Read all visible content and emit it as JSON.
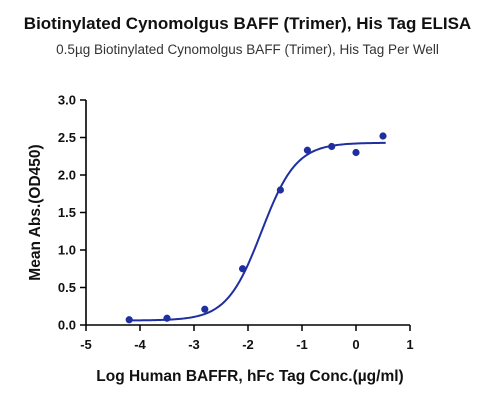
{
  "chart_data": {
    "type": "scatter",
    "title": "Biotinylated Cynomolgus BAFF (Trimer), His Tag  ELISA",
    "subtitle": "0.5µg Biotinylated Cynomolgus BAFF (Trimer), His Tag Per Well",
    "xlabel": "Log  Human BAFFR, hFc Tag Conc.(µg/ml)",
    "ylabel": "Mean Abs.(OD450)",
    "xlim": [
      -5,
      1
    ],
    "ylim": [
      0,
      3.0
    ],
    "xticks": [
      "-5",
      "-4",
      "-3",
      "-2",
      "-1",
      "0",
      "1"
    ],
    "yticks": [
      "0.0",
      "0.5",
      "1.0",
      "1.5",
      "2.0",
      "2.5",
      "3.0"
    ],
    "grid": false,
    "series": [
      {
        "color": "#1f2f9f",
        "x": [
          -4.2,
          -3.5,
          -2.8,
          -2.1,
          -1.4,
          -0.9,
          -0.45,
          0.0,
          0.5
        ],
        "y": [
          0.07,
          0.09,
          0.21,
          0.75,
          1.8,
          2.33,
          2.38,
          2.3,
          2.52
        ],
        "fit": {
          "model": "4PL",
          "bottom": 0.06,
          "top": 2.43,
          "logEC50": -1.75,
          "hill": 1.35
        }
      }
    ]
  }
}
